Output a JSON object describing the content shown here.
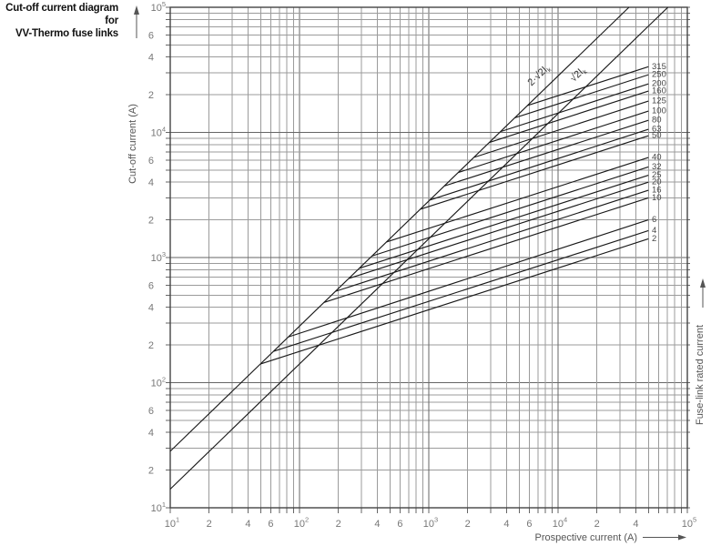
{
  "title": {
    "line1": "Cut-off current diagram for",
    "line2": "VV-Thermo fuse links"
  },
  "colors": {
    "background": "#ffffff",
    "grid_minor": "#9b9b9b",
    "grid_major": "#666666",
    "frame": "#444444",
    "curve": "#1a1a1a",
    "tick_text": "#777777",
    "axis_text": "#555555",
    "rating_text": "#474747",
    "title_text": "#111111"
  },
  "chart_data": {
    "type": "line",
    "x_scale": "log",
    "y_scale": "log",
    "x_range": [
      10,
      100000
    ],
    "y_range": [
      10,
      100000
    ],
    "grid": "log-log, minor gridlines at 2-9 in each decade, both axes",
    "legend_position": "none",
    "title": "Cut-off current diagram for VV-Thermo fuse links",
    "xlabel": "Prospective current (A)",
    "ylabel": "Cut-off current (A)",
    "right_label": "Fuse-link rated current",
    "x_ticks": [
      {
        "v": 10,
        "t": "10",
        "sup": "1"
      },
      {
        "v": 20,
        "t": "2"
      },
      {
        "v": 40,
        "t": "4"
      },
      {
        "v": 60,
        "t": "6"
      },
      {
        "v": 100,
        "t": "10",
        "sup": "2"
      },
      {
        "v": 200,
        "t": "2"
      },
      {
        "v": 400,
        "t": "4"
      },
      {
        "v": 600,
        "t": "6"
      },
      {
        "v": 1000,
        "t": "10",
        "sup": "3"
      },
      {
        "v": 2000,
        "t": "2"
      },
      {
        "v": 4000,
        "t": "4"
      },
      {
        "v": 6000,
        "t": "6"
      },
      {
        "v": 10000,
        "t": "10",
        "sup": "4"
      },
      {
        "v": 20000,
        "t": "2"
      },
      {
        "v": 40000,
        "t": "4"
      },
      {
        "v": 100000,
        "t": "10",
        "sup": "5"
      }
    ],
    "y_ticks": [
      {
        "v": 100000,
        "t": "10",
        "sup": "5"
      },
      {
        "v": 60000,
        "t": "6"
      },
      {
        "v": 40000,
        "t": "4"
      },
      {
        "v": 20000,
        "t": "2"
      },
      {
        "v": 10000,
        "t": "10",
        "sup": "4"
      },
      {
        "v": 6000,
        "t": "6"
      },
      {
        "v": 4000,
        "t": "4"
      },
      {
        "v": 2000,
        "t": "2"
      },
      {
        "v": 1000,
        "t": "10",
        "sup": "3"
      },
      {
        "v": 600,
        "t": "6"
      },
      {
        "v": 400,
        "t": "4"
      },
      {
        "v": 200,
        "t": "2"
      },
      {
        "v": 100,
        "t": "10",
        "sup": "2"
      },
      {
        "v": 60,
        "t": "6"
      },
      {
        "v": 40,
        "t": "4"
      },
      {
        "v": 20,
        "t": "2"
      },
      {
        "v": 10,
        "t": "10",
        "sup": "1"
      }
    ],
    "reference_lines": [
      {
        "id": "2sqrt2",
        "formula": "y = 2·√2·x",
        "label_main": "2·√2I",
        "label_sub": "k",
        "label_x": 594,
        "label_y": 85,
        "points": [
          [
            10,
            28.3
          ],
          [
            35360,
            100000
          ]
        ]
      },
      {
        "id": "sqrt2",
        "formula": "y = √2·x",
        "label_main": "√2I",
        "label_sub": "k",
        "label_x": 637,
        "label_y": 84,
        "points": [
          [
            10,
            14.1
          ],
          [
            70710,
            100000
          ]
        ]
      }
    ],
    "fuse_curves": [
      {
        "rating": "315",
        "points": [
          [
            5800,
            16400
          ],
          [
            50000,
            33500
          ]
        ]
      },
      {
        "rating": "250",
        "points": [
          [
            4620,
            13070
          ],
          [
            50000,
            28900
          ]
        ]
      },
      {
        "rating": "200",
        "points": [
          [
            3590,
            10150
          ],
          [
            50000,
            24400
          ]
        ]
      },
      {
        "rating": "160",
        "points": [
          [
            2940,
            8310
          ],
          [
            50000,
            21400
          ]
        ]
      },
      {
        "rating": "125",
        "points": [
          [
            2230,
            6310
          ],
          [
            50000,
            17800
          ]
        ]
      },
      {
        "rating": "100",
        "points": [
          [
            1690,
            4780
          ],
          [
            50000,
            14800
          ]
        ]
      },
      {
        "rating": "80",
        "points": [
          [
            1320,
            3730
          ],
          [
            50000,
            12500
          ]
        ]
      },
      {
        "rating": "63",
        "points": [
          [
            1020,
            2880
          ],
          [
            50000,
            10600
          ]
        ]
      },
      {
        "rating": "50",
        "points": [
          [
            860,
            2430
          ],
          [
            50000,
            9400
          ]
        ]
      },
      {
        "rating": "40",
        "points": [
          [
            470,
            1330
          ],
          [
            50000,
            6300
          ]
        ]
      },
      {
        "rating": "32",
        "points": [
          [
            365,
            1030
          ],
          [
            50000,
            5300
          ]
        ]
      },
      {
        "rating": "25",
        "points": [
          [
            290,
            820
          ],
          [
            50000,
            4550
          ]
        ]
      },
      {
        "rating": "20",
        "points": [
          [
            240,
            680
          ],
          [
            50000,
            4000
          ]
        ]
      },
      {
        "rating": "16",
        "points": [
          [
            190,
            537
          ],
          [
            50000,
            3450
          ]
        ]
      },
      {
        "rating": "10",
        "points": [
          [
            155,
            438
          ],
          [
            50000,
            3000
          ]
        ]
      },
      {
        "rating": "6",
        "points": [
          [
            82,
            232
          ],
          [
            50000,
            2000
          ]
        ]
      },
      {
        "rating": "4",
        "points": [
          [
            63,
            178
          ],
          [
            50000,
            1640
          ]
        ]
      },
      {
        "rating": "2",
        "points": [
          [
            50,
            141
          ],
          [
            50000,
            1410
          ]
        ]
      }
    ]
  }
}
